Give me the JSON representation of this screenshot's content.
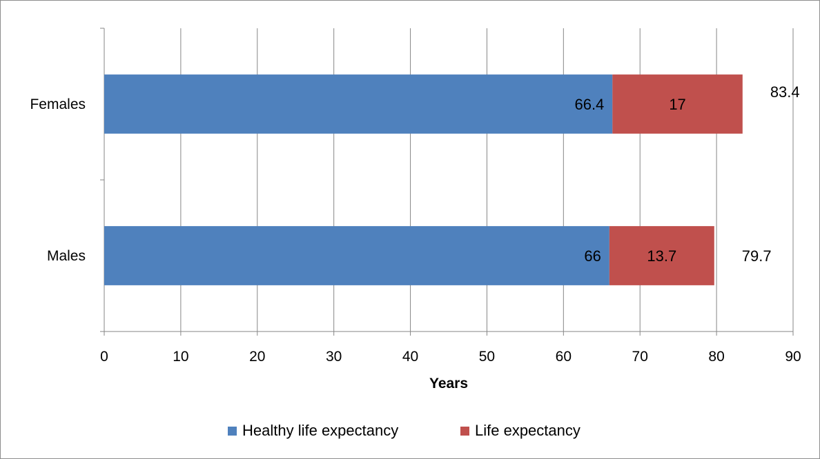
{
  "chart_data": {
    "type": "bar",
    "orientation": "horizontal",
    "stacked": true,
    "categories": [
      "Females",
      "Males"
    ],
    "series": [
      {
        "name": "Healthy life expectancy",
        "values": [
          66.4,
          66
        ],
        "color": "#4f81bd"
      },
      {
        "name": "Life expectancy",
        "values": [
          17,
          13.7
        ],
        "color": "#c0504d"
      }
    ],
    "totals": [
      83.4,
      79.7
    ],
    "xlabel": "Years",
    "ylabel": "",
    "xlim": [
      0,
      90
    ],
    "xticks": [
      0,
      10,
      20,
      30,
      40,
      50,
      60,
      70,
      80,
      90
    ],
    "gridlines": "vertical",
    "legend": "bottom"
  }
}
